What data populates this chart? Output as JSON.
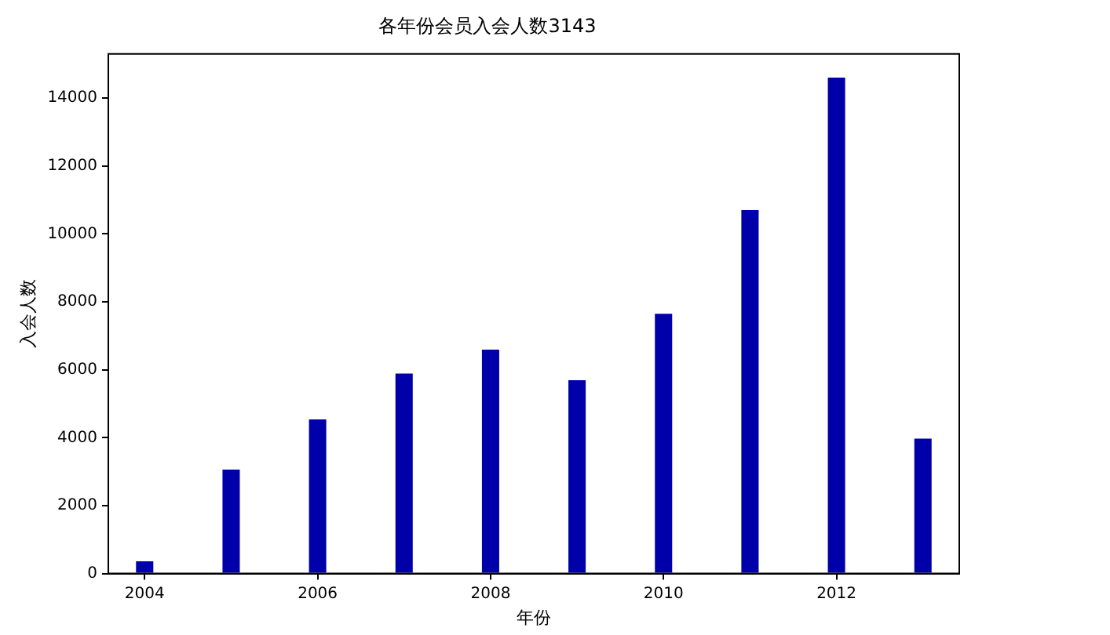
{
  "chart_data": {
    "type": "bar",
    "title": "各年份会员入会人数3143",
    "xlabel": "年份",
    "ylabel": "入会人数",
    "x": [
      2004,
      2005,
      2006,
      2007,
      2008,
      2009,
      2010,
      2011,
      2012,
      2013
    ],
    "values": [
      360,
      3060,
      4540,
      5890,
      6590,
      5690,
      7650,
      10700,
      14600,
      3970
    ],
    "color": "#0000aa",
    "xlim": [
      2003.58,
      2013.42
    ],
    "xticks": [
      2004,
      2006,
      2008,
      2010,
      2012
    ],
    "ylim": [
      0,
      15300
    ],
    "yticks": [
      0,
      2000,
      4000,
      6000,
      8000,
      10000,
      12000,
      14000
    ],
    "grid": false,
    "legend": false
  }
}
